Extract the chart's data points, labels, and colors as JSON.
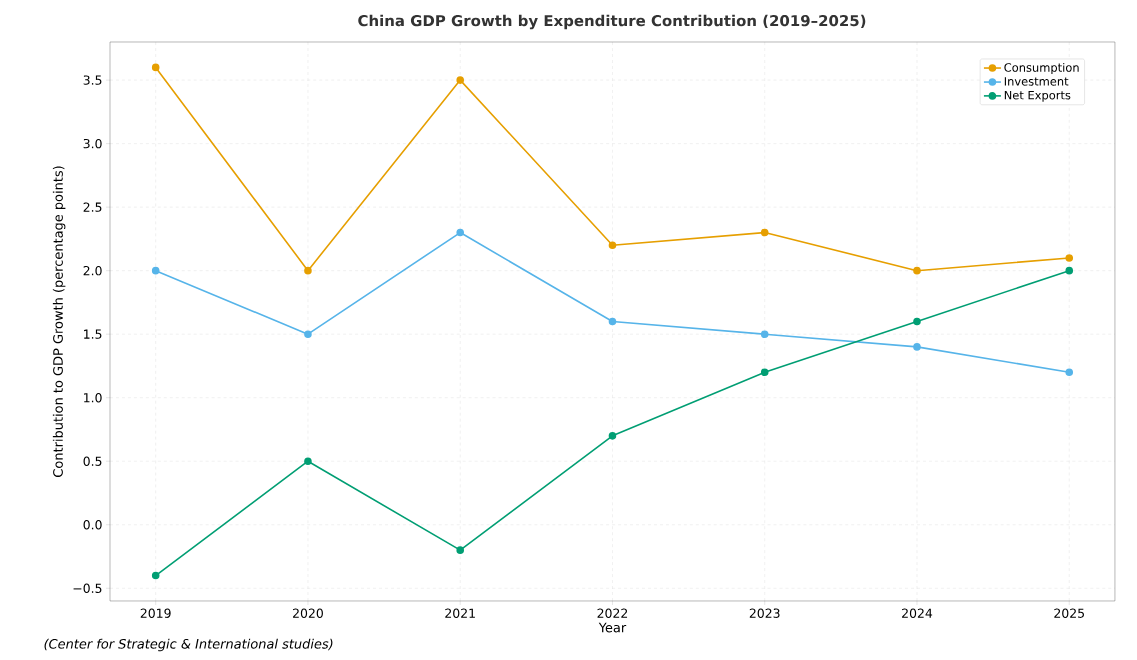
{
  "chart_data": {
    "type": "line",
    "title": "China GDP Growth by Expenditure Contribution (2019–2025)",
    "xlabel": "Year",
    "ylabel": "Contribution to GDP Growth (percentage points)",
    "annotations": [
      "(Center for Strategic & International studies)"
    ],
    "x": [
      2019,
      2020,
      2021,
      2022,
      2023,
      2024,
      2025
    ],
    "series": [
      {
        "name": "Consumption",
        "color": "#e69f00",
        "values": [
          3.6,
          2.0,
          3.5,
          2.2,
          2.3,
          2.0,
          2.1
        ]
      },
      {
        "name": "Investment",
        "color": "#56b4e9",
        "values": [
          2.0,
          1.5,
          2.3,
          1.6,
          1.5,
          1.4,
          1.2
        ]
      },
      {
        "name": "Net Exports",
        "color": "#009e73",
        "values": [
          -0.4,
          0.5,
          -0.2,
          0.7,
          1.2,
          1.6,
          2.0
        ]
      }
    ],
    "xlim": [
      2018.7,
      2025.3
    ],
    "ylim": [
      -0.6,
      3.8
    ],
    "xticks": [
      2019,
      2020,
      2021,
      2022,
      2023,
      2024,
      2025
    ],
    "yticks": [
      {
        "value": -0.5,
        "label": "−0.5"
      },
      {
        "value": 0,
        "label": "0.0"
      },
      {
        "value": 0.5,
        "label": "0.5"
      },
      {
        "value": 1,
        "label": "1.0"
      },
      {
        "value": 1.5,
        "label": "1.5"
      },
      {
        "value": 2,
        "label": "2.0"
      },
      {
        "value": 2.5,
        "label": "2.5"
      },
      {
        "value": 3,
        "label": "3.0"
      },
      {
        "value": 3.5,
        "label": "3.5"
      }
    ],
    "grid": true,
    "legend": "top right",
    "marker": "circle",
    "line_style": "solid"
  }
}
